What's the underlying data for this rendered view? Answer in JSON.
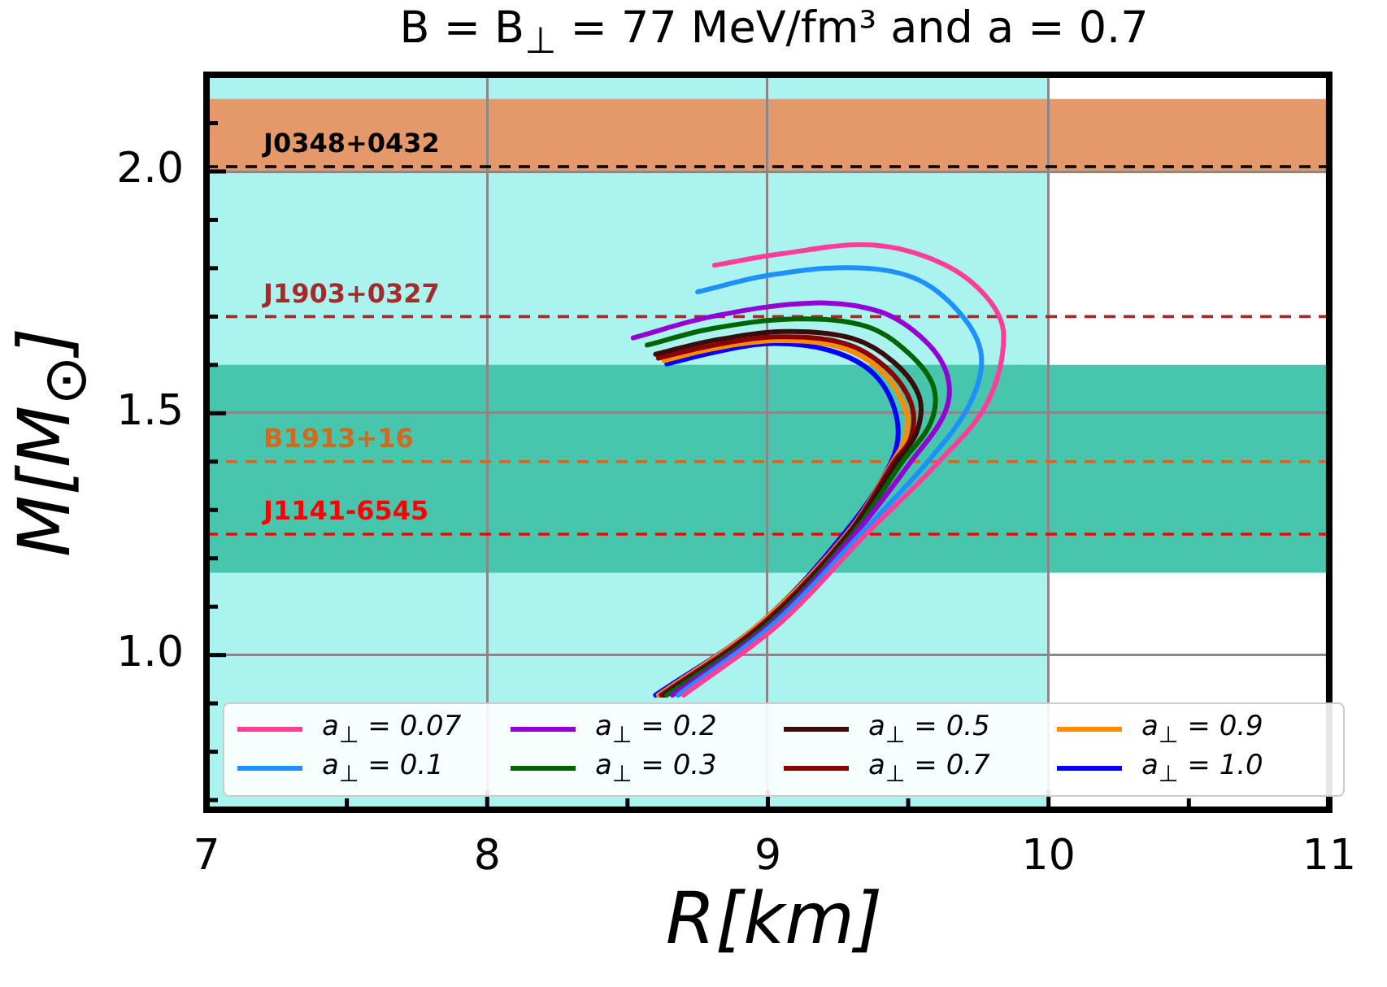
{
  "chart_data": {
    "type": "line",
    "title": "B = B$_{⊥}$ = 77 MeV/fm³ and a = 0.7",
    "xlabel": "R[km]",
    "ylabel": "M[M$_{⊙}$]",
    "xlim": [
      7,
      11
    ],
    "ylim": [
      0.68,
      2.2
    ],
    "xticks": [
      7,
      {
        "value": 7.5,
        "label": null
      },
      8,
      {
        "value": 8.5,
        "label": null
      },
      9,
      {
        "value": 9.5,
        "label": null
      },
      10,
      {
        "value": 10.5,
        "label": null
      },
      11
    ],
    "yticks": [
      {
        "value": 0.7,
        "label": null
      },
      {
        "value": 0.8,
        "label": null
      },
      {
        "value": 0.9,
        "label": null
      },
      {
        "value": 1.0,
        "label": "1.0"
      },
      {
        "value": 1.1,
        "label": null
      },
      {
        "value": 1.2,
        "label": null
      },
      {
        "value": 1.3,
        "label": null
      },
      {
        "value": 1.4,
        "label": null
      },
      {
        "value": 1.5,
        "label": "1.5"
      },
      {
        "value": 1.6,
        "label": null
      },
      {
        "value": 1.7,
        "label": null
      },
      {
        "value": 1.8,
        "label": null
      },
      {
        "value": 1.9,
        "label": null
      },
      {
        "value": 2.0,
        "label": "2.0"
      },
      {
        "value": 2.1,
        "label": null
      }
    ],
    "grid": true,
    "legend": "bottom",
    "marker": "none",
    "line_style": "solid",
    "bands": [
      {
        "axis": "x",
        "from": 7,
        "to": 10,
        "color": "#aaf3ef"
      },
      {
        "axis": "y",
        "from": 1.17,
        "to": 1.6,
        "color": "#48c6ad"
      },
      {
        "axis": "y",
        "from": 2.0,
        "to": 2.15,
        "color": "#e5996a"
      }
    ],
    "ref_lines": [
      {
        "axis": "y",
        "value": 2.01,
        "label": "J0348+0432",
        "color": "#000000",
        "line_style": "dashed"
      },
      {
        "axis": "y",
        "value": 1.7,
        "label": "J1903+0327",
        "color": "#a52a2a",
        "line_style": "dashed"
      },
      {
        "axis": "y",
        "value": 1.4,
        "label": "B1913+16",
        "color": "#d2691e",
        "line_style": "dashed"
      },
      {
        "axis": "y",
        "value": 1.25,
        "label": "J1141-6545",
        "color": "#ff0000",
        "line_style": "dashed"
      }
    ],
    "series": [
      {
        "name": "a$_{⊥}$ = 0.07",
        "color": "#ff3e9a",
        "x": [
          8.81,
          9.05,
          9.37,
          9.62,
          9.78,
          9.84,
          9.78,
          9.61,
          9.35,
          9.04,
          8.7
        ],
        "values": [
          1.806,
          1.83,
          1.848,
          1.81,
          1.74,
          1.66,
          1.52,
          1.4,
          1.25,
          1.064,
          0.917
        ]
      },
      {
        "name": "a$_{⊥}$ = 0.1",
        "color": "#1e90ff",
        "x": [
          8.75,
          9.0,
          9.29,
          9.52,
          9.68,
          9.76,
          9.72,
          9.57,
          9.33,
          9.02,
          8.68
        ],
        "values": [
          1.751,
          1.785,
          1.801,
          1.78,
          1.71,
          1.622,
          1.52,
          1.4,
          1.25,
          1.064,
          0.917
        ]
      },
      {
        "name": "a$_{⊥}$ = 0.2",
        "color": "#9400d3",
        "x": [
          8.52,
          8.8,
          9.16,
          9.4,
          9.56,
          9.64,
          9.63,
          9.51,
          9.31,
          9.01,
          8.66
        ],
        "values": [
          1.656,
          1.7,
          1.728,
          1.71,
          1.65,
          1.577,
          1.5,
          1.4,
          1.25,
          1.064,
          0.917
        ]
      },
      {
        "name": "a$_{⊥}$ = 0.3",
        "color": "#006400",
        "x": [
          8.57,
          8.8,
          9.1,
          9.35,
          9.5,
          9.59,
          9.58,
          9.48,
          9.3,
          9.0,
          8.64
        ],
        "values": [
          1.641,
          1.675,
          1.695,
          1.68,
          1.625,
          1.555,
          1.48,
          1.4,
          1.25,
          1.064,
          0.917
        ]
      },
      {
        "name": "a$_{⊥}$ = 0.5",
        "color": "#3b0a0a",
        "x": [
          8.6,
          8.8,
          9.06,
          9.3,
          9.45,
          9.54,
          9.53,
          9.46,
          9.29,
          8.99,
          8.63
        ],
        "values": [
          1.622,
          1.65,
          1.669,
          1.655,
          1.605,
          1.533,
          1.46,
          1.4,
          1.25,
          1.064,
          0.917
        ]
      },
      {
        "name": "a$_{⊥}$ = 0.7",
        "color": "#8b0000",
        "x": [
          8.61,
          8.8,
          9.03,
          9.27,
          9.42,
          9.51,
          9.51,
          9.45,
          9.285,
          8.98,
          8.62
        ],
        "values": [
          1.614,
          1.64,
          1.658,
          1.645,
          1.595,
          1.521,
          1.45,
          1.4,
          1.25,
          1.064,
          0.917
        ]
      },
      {
        "name": "a$_{⊥}$ = 0.9",
        "color": "#ff8c00",
        "x": [
          8.63,
          8.8,
          9.02,
          9.25,
          9.4,
          9.49,
          9.49,
          9.445,
          9.28,
          8.97,
          8.61
        ],
        "values": [
          1.609,
          1.633,
          1.65,
          1.638,
          1.59,
          1.51,
          1.45,
          1.4,
          1.25,
          1.064,
          0.917
        ]
      },
      {
        "name": "a$_{⊥}$ = 1.0",
        "color": "#0000ff",
        "x": [
          8.64,
          8.8,
          9.0,
          9.22,
          9.38,
          9.46,
          9.44,
          9.27,
          8.97,
          8.6
        ],
        "values": [
          1.602,
          1.625,
          1.644,
          1.63,
          1.58,
          1.488,
          1.4,
          1.25,
          1.064,
          0.917
        ]
      }
    ]
  }
}
